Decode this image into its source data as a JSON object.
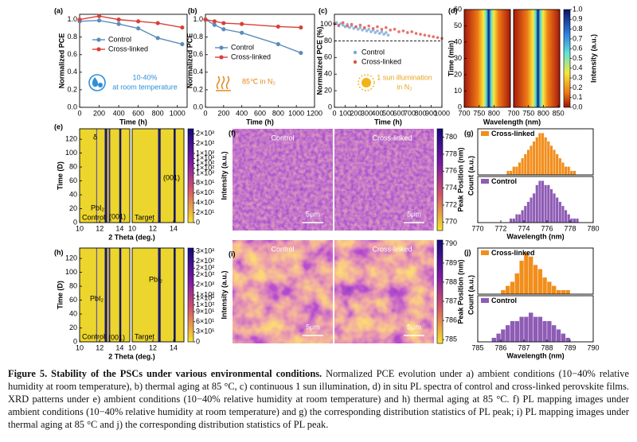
{
  "chart_data": [
    {
      "panel": "(a)",
      "type": "line",
      "xlabel": "Time (h)",
      "ylabel": "Normalized PCE",
      "xlim": [
        0,
        1100
      ],
      "xticks": [
        0,
        200,
        400,
        600,
        800,
        1000
      ],
      "ylim": [
        0,
        1.06
      ],
      "yticks": [
        {
          "value": 0,
          "label": "0.0"
        },
        0.2,
        0.4,
        0.6,
        0.8,
        {
          "value": 1,
          "label": "1.0"
        }
      ],
      "annotation": [
        "10-40%",
        "at room temperature"
      ],
      "annotation_color": "#2e8fd8",
      "series": [
        {
          "name": "Control",
          "color": "#5b8cba",
          "x": [
            0,
            200,
            400,
            600,
            800,
            1050
          ],
          "values": [
            0.98,
            0.99,
            0.95,
            0.9,
            0.79,
            0.72
          ]
        },
        {
          "name": "Cross-linked",
          "color": "#d9403a",
          "x": [
            0,
            200,
            400,
            600,
            800,
            1050
          ],
          "values": [
            1,
            1.04,
            1,
            0.98,
            0.96,
            0.91
          ]
        }
      ]
    },
    {
      "panel": "(b)",
      "type": "line",
      "xlabel": "Time (h)",
      "ylabel": "Normalized PCE",
      "xlim": [
        0,
        1200
      ],
      "xticks": [
        0,
        200,
        400,
        600,
        800,
        1000,
        1200
      ],
      "ylim": [
        0,
        1.06
      ],
      "yticks": [
        {
          "value": 0,
          "label": "0.0"
        },
        0.2,
        0.4,
        0.6,
        0.8,
        {
          "value": 1,
          "label": "1.0"
        }
      ],
      "annotation": [
        "85℃ in N₂"
      ],
      "annotation_color": "#e58a1e",
      "series": [
        {
          "name": "Control",
          "color": "#5b8cba",
          "x": [
            0,
            100,
            200,
            400,
            800,
            1050
          ],
          "values": [
            1,
            0.94,
            0.89,
            0.85,
            0.72,
            0.62
          ]
        },
        {
          "name": "Cross-linked",
          "color": "#d9403a",
          "x": [
            0,
            100,
            200,
            400,
            800,
            1050
          ],
          "values": [
            1,
            0.98,
            0.96,
            0.95,
            0.92,
            0.91
          ]
        }
      ]
    },
    {
      "panel": "(c)",
      "type": "scatter",
      "xlabel": "Time (h)",
      "ylabel": "Normalized PCE (%)",
      "xlim": [
        0,
        1000
      ],
      "xticks": [
        0,
        100,
        200,
        300,
        400,
        500,
        600,
        700,
        800,
        900,
        1000
      ],
      "ylim": [
        0,
        112
      ],
      "yticks": [
        0,
        20,
        40,
        60,
        80,
        100
      ],
      "hline": 80,
      "annotation": [
        "1 sun illumination",
        "in N₂"
      ],
      "annotation_color": "#e6a41c",
      "series": [
        {
          "name": "Control",
          "color": "#7ba7d6",
          "x": [
            0,
            20,
            40,
            60,
            80,
            100,
            120,
            140,
            160,
            180,
            200,
            220,
            240,
            260,
            280,
            300,
            320,
            340,
            360,
            380,
            400,
            420,
            440,
            460,
            480,
            500
          ],
          "values": [
            100,
            102,
            98,
            101,
            99,
            97,
            100,
            96,
            98,
            95,
            97,
            94,
            96,
            93,
            95,
            92,
            94,
            91,
            93,
            90,
            92,
            89,
            91,
            88,
            90,
            87
          ]
        },
        {
          "name": "Cross-linked",
          "color": "#e0504a",
          "x": [
            0,
            40,
            80,
            120,
            160,
            200,
            240,
            280,
            320,
            360,
            400,
            440,
            480,
            520,
            560,
            600,
            640,
            680,
            720,
            760,
            800,
            840,
            880,
            920,
            960,
            1000
          ],
          "values": [
            101,
            99,
            102,
            98,
            100,
            97,
            99,
            96,
            98,
            95,
            97,
            94,
            96,
            93,
            94,
            91,
            92,
            90,
            91,
            89,
            88,
            87,
            86,
            85,
            84,
            83
          ]
        }
      ]
    },
    {
      "panel": "(d)",
      "type": "heatmap",
      "xlabel": "Wavelength (nm)",
      "ylabel": "Time (min)",
      "xlim": [
        700,
        855
      ],
      "ylim": [
        0,
        60
      ],
      "yticks": [
        0,
        10,
        20,
        30,
        40,
        50,
        60
      ],
      "subpanels": [
        {
          "xticks": [
            700,
            750,
            800
          ]
        },
        {
          "xticks": [
            700,
            750,
            800,
            850
          ]
        }
      ],
      "cbar_label": "Intensity (a.u.)",
      "cbar_lim": [
        0,
        1
      ],
      "cbar_ticks": [
        {
          "value": 0,
          "label": "0.0"
        },
        0.1,
        0.2,
        0.3,
        0.4,
        0.5,
        0.6,
        0.7,
        0.8,
        0.9,
        {
          "value": 1,
          "label": "1.0"
        }
      ]
    },
    {
      "panel": "(e)",
      "type": "heatmap",
      "xlabel": "2 Theta (deg.)",
      "ylabel": "Time (D)",
      "xlim": [
        10,
        15
      ],
      "ylim": [
        0,
        135
      ],
      "yticks": [
        0,
        20,
        40,
        60,
        80,
        100,
        120
      ],
      "subpanels": [
        {
          "xticks": [
            10,
            12,
            14
          ],
          "label": "Control"
        },
        {
          "xticks": [
            10,
            12,
            14
          ],
          "label": "Target"
        }
      ],
      "peaks": [
        "δ",
        "PbI₂",
        "(001)",
        "(001)"
      ],
      "cbar_label": "Intensity (a.u.)",
      "cbar_lim": [
        0,
        190
      ],
      "cbar_ticks": [
        0,
        {
          "value": 20,
          "label": "2×10¹"
        },
        {
          "value": 40,
          "label": "4×10¹"
        },
        {
          "value": 60,
          "label": "6×10¹"
        },
        {
          "value": 80,
          "label": "8×10¹"
        },
        {
          "value": 100,
          "label": "1×10²"
        },
        {
          "value": 110,
          "label": "1×10²"
        },
        {
          "value": 120,
          "label": "1×10²"
        },
        {
          "value": 130,
          "label": "1×10²"
        },
        {
          "value": 140,
          "label": "1×10²"
        },
        {
          "value": 160,
          "label": "2×10²"
        },
        {
          "value": 180,
          "label": "2×10²"
        }
      ]
    },
    {
      "panel": "(f)",
      "type": "map",
      "subpanels": [
        {
          "label": "Control",
          "scalebar": "5μm"
        },
        {
          "label": "Cross-linked",
          "scalebar": "5μm"
        }
      ],
      "cbar_label": "Peak Position (nm)",
      "cbar_lim": [
        769,
        781
      ],
      "cbar_ticks": [
        770,
        772,
        774,
        776,
        778,
        780
      ]
    },
    {
      "panel": "(g)",
      "type": "histogram",
      "xlabel": "Wavelength (nm)",
      "ylabel": "Count (a.u.)",
      "xlim": [
        770,
        780
      ],
      "xticks": [
        770,
        772,
        774,
        776,
        778,
        780
      ],
      "ylim": [
        0,
        11
      ],
      "series": [
        {
          "name": "Cross-linked",
          "color": "#f28e1c",
          "bins": [
            772.5,
            772.75,
            773,
            773.25,
            773.5,
            773.75,
            774,
            774.25,
            774.5,
            774.75,
            775,
            775.25,
            775.5,
            775.75,
            776,
            776.25,
            776.5,
            776.75,
            777,
            777.25,
            777.5,
            777.75,
            778,
            778.25,
            778.5
          ],
          "counts": [
            1,
            1,
            2,
            2,
            3,
            4,
            5,
            6,
            7,
            8,
            9,
            10,
            10,
            9,
            8,
            7,
            6,
            5,
            4,
            3,
            2,
            2,
            1,
            1
          ]
        },
        {
          "name": "Control",
          "color": "#8e5cb5",
          "bins": [
            772.75,
            773,
            773.25,
            773.5,
            773.75,
            774,
            774.25,
            774.5,
            774.75,
            775,
            775.25,
            775.5,
            775.75,
            776,
            776.25,
            776.5,
            776.75,
            777,
            777.25,
            777.5,
            777.75,
            778,
            778.25,
            778.5,
            778.75
          ],
          "counts": [
            1,
            1,
            2,
            2,
            3,
            4,
            5,
            6,
            7,
            9,
            10,
            10,
            9,
            9,
            8,
            7,
            6,
            5,
            4,
            3,
            2,
            1,
            1,
            1
          ]
        }
      ]
    },
    {
      "panel": "(h)",
      "type": "heatmap",
      "xlabel": "2 Theta (deg.)",
      "ylabel": "Time (D)",
      "xlim": [
        10,
        15
      ],
      "ylim": [
        0,
        135
      ],
      "yticks": [
        0,
        20,
        40,
        60,
        80,
        100,
        120
      ],
      "subpanels": [
        {
          "xticks": [
            10,
            12,
            14
          ],
          "label": "Control"
        },
        {
          "xticks": [
            10,
            12,
            14
          ],
          "label": "Target"
        }
      ],
      "peaks": [
        "PbI₂",
        "PbI₂",
        "(001)"
      ],
      "cbar_label": "Intensity (a.u.)",
      "cbar_lim": [
        0,
        280
      ],
      "cbar_ticks": [
        0,
        {
          "value": 30,
          "label": "3×10¹"
        },
        {
          "value": 60,
          "label": "6×10¹"
        },
        {
          "value": 90,
          "label": "9×10¹"
        },
        {
          "value": 110,
          "label": "1×10²"
        },
        {
          "value": 130,
          "label": "1×10²"
        },
        {
          "value": 140,
          "label": "1×10²"
        },
        {
          "value": 170,
          "label": "2×10²"
        },
        {
          "value": 200,
          "label": "2×10²"
        },
        {
          "value": 220,
          "label": "2×10²"
        },
        {
          "value": 240,
          "label": "2×10²"
        },
        {
          "value": 270,
          "label": "3×10²"
        }
      ]
    },
    {
      "panel": "(i)",
      "type": "map",
      "subpanels": [
        {
          "label": "Control",
          "scalebar": "5μm"
        },
        {
          "label": "Cross-linked",
          "scalebar": "5μm"
        }
      ],
      "cbar_label": "Peak Position (nm)",
      "cbar_lim": [
        784.8,
        790.2
      ],
      "cbar_ticks": [
        785,
        786,
        787,
        788,
        789,
        790
      ]
    },
    {
      "panel": "(j)",
      "type": "histogram",
      "xlabel": "Wavelength (nm)",
      "ylabel": "Count (a.u.)",
      "xlim": [
        785,
        790
      ],
      "xticks": [
        785,
        786,
        787,
        788,
        789,
        790
      ],
      "ylim": [
        0,
        11
      ],
      "series": [
        {
          "name": "Cross-linked",
          "color": "#f28e1c",
          "bins": [
            786,
            786.2,
            786.4,
            786.6,
            786.8,
            787,
            787.2,
            787.4,
            787.6,
            787.8,
            788,
            788.2,
            788.4,
            788.6,
            788.8,
            789
          ],
          "counts": [
            1,
            2,
            3,
            5,
            8,
            10,
            9,
            7,
            6,
            4,
            3,
            2,
            1,
            1,
            1
          ]
        },
        {
          "name": "Control",
          "color": "#8e5cb5",
          "bins": [
            785.6,
            785.8,
            786,
            786.2,
            786.4,
            786.6,
            786.8,
            787,
            787.2,
            787.4,
            787.6,
            787.8,
            788,
            788.2,
            788.4,
            788.6,
            788.8,
            789
          ],
          "counts": [
            1,
            2,
            3,
            4,
            5,
            5,
            6,
            6,
            7,
            6,
            6,
            5,
            5,
            4,
            3,
            2,
            1
          ]
        }
      ]
    }
  ],
  "caption": {
    "label": "Figure 5. Stability of the PSCs under various environmental conditions.",
    "text": "Normalized PCE evolution under a) ambient conditions (10−40% relative humidity at room temperature), b) thermal aging at 85 °C, c) continuous 1 sun illumination, d) in situ PL spectra of control and cross-linked perovskite films. XRD patterns under e) ambient conditions (10−40% relative humidity at room temperature) and h) thermal aging at 85 °C. f) PL mapping images under ambient conditions (10−40% relative humidity at room temperature) and g) the corresponding distribution statistics of PL peak; i) PL mapping images under thermal aging at 85 °C and j) the corresponding distribution statistics of PL peak."
  }
}
